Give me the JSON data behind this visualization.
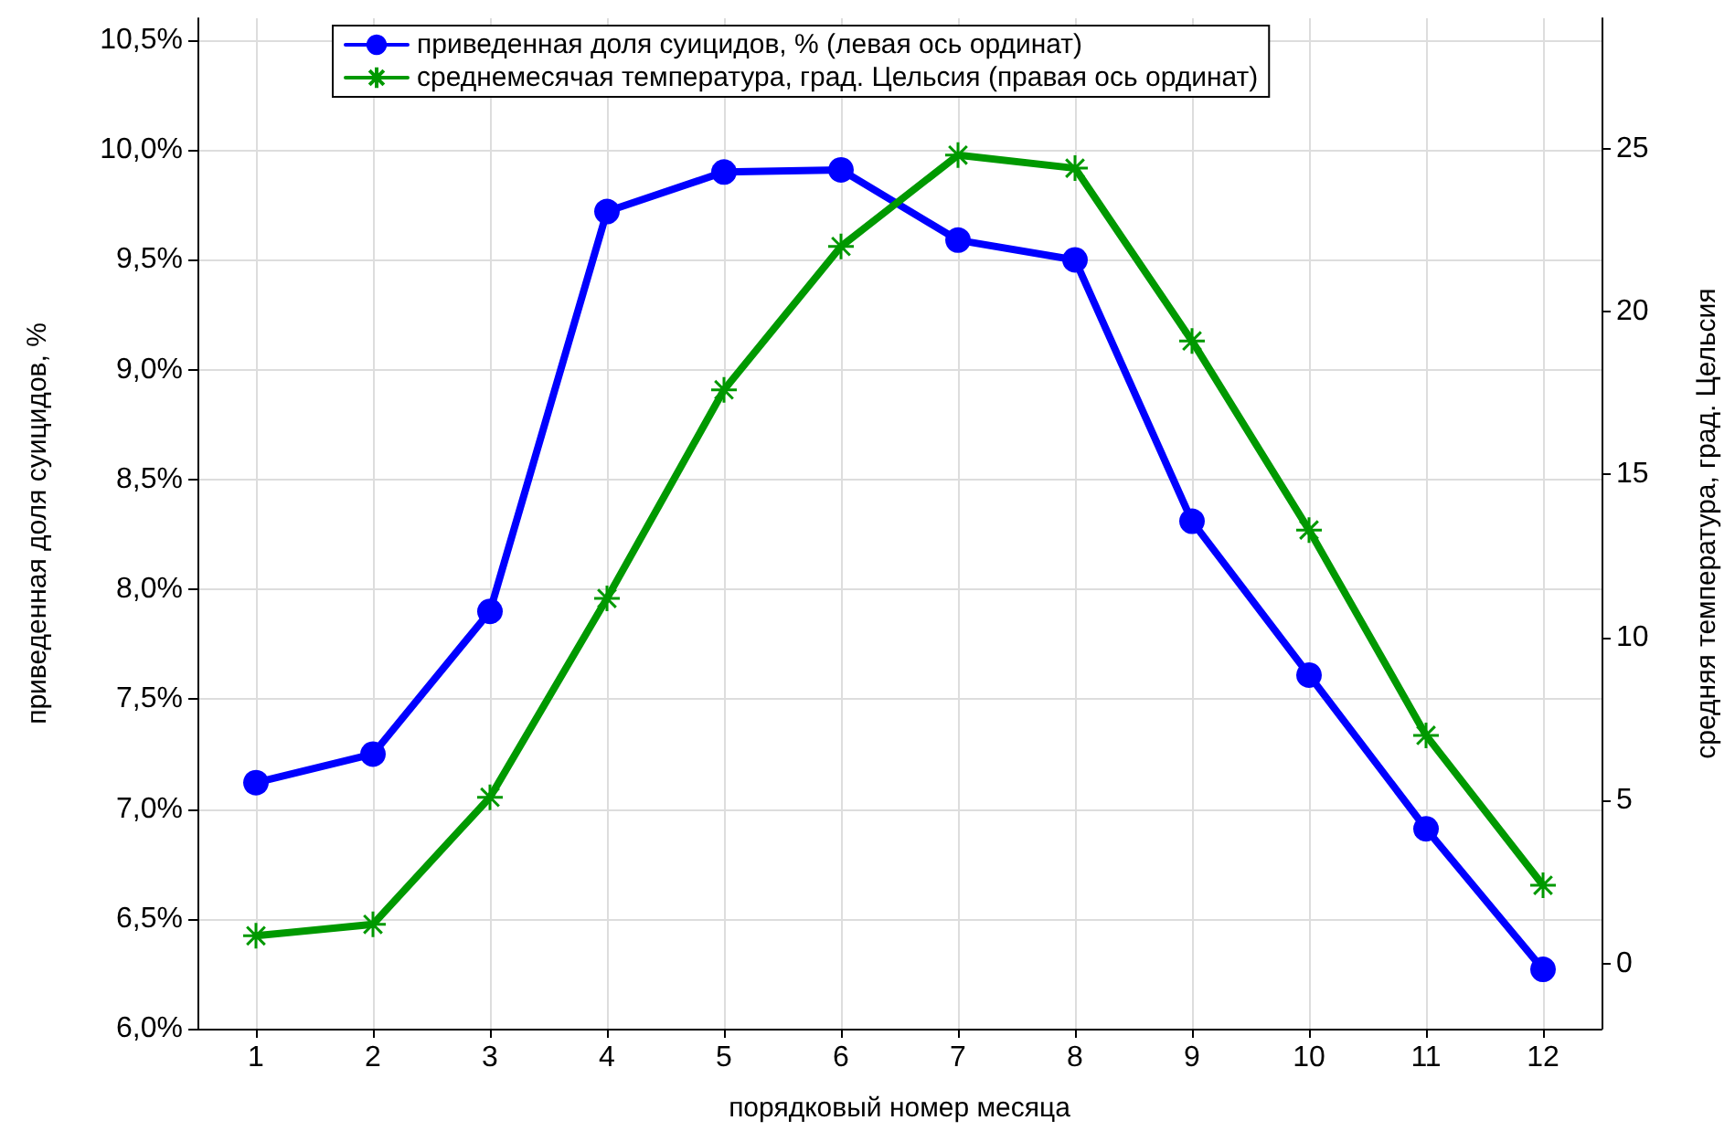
{
  "chart_data": {
    "type": "line",
    "xlabel": "порядковый номер месяца",
    "ylabel": "приведенная доля суицидов, %",
    "y2label": "средняя температура, град. Цельсия",
    "x": [
      1,
      2,
      3,
      4,
      5,
      6,
      7,
      8,
      9,
      10,
      11,
      12
    ],
    "xlim": [
      0.5,
      12.5
    ],
    "xticks": [
      1,
      2,
      3,
      4,
      5,
      6,
      7,
      8,
      9,
      10,
      11,
      12
    ],
    "series": [
      {
        "name": "приведенная доля суицидов, % (левая ось ординат)",
        "color": "#0000ff",
        "marker": "circle",
        "values": [
          7.12,
          7.25,
          7.9,
          9.72,
          9.9,
          9.91,
          9.59,
          9.5,
          8.31,
          7.61,
          6.91,
          6.27
        ]
      },
      {
        "name": "среднемесячая температура, град. Цельсия (правая ось ординат)",
        "color": "#009900",
        "marker": "cross",
        "axis": "y2",
        "values": [
          0.85,
          1.2,
          5.1,
          11.2,
          17.6,
          22.0,
          24.8,
          24.4,
          19.1,
          13.3,
          7.0,
          2.4
        ]
      }
    ],
    "ylim": [
      6.0,
      10.6
    ],
    "yticks": [
      {
        "value": 6.0,
        "label": "6,0%"
      },
      {
        "value": 6.5,
        "label": "6,5%"
      },
      {
        "value": 7.0,
        "label": "7,0%"
      },
      {
        "value": 7.5,
        "label": "7,5%"
      },
      {
        "value": 8.0,
        "label": "8,0%"
      },
      {
        "value": 8.5,
        "label": "8,5%"
      },
      {
        "value": 9.0,
        "label": "9,0%"
      },
      {
        "value": 9.5,
        "label": "9,5%"
      },
      {
        "value": 10.0,
        "label": "10,0%"
      },
      {
        "value": 10.5,
        "label": "10,5%"
      }
    ],
    "y2lim": [
      -2,
      29
    ],
    "y2ticks": [
      0,
      5,
      10,
      15,
      20,
      25
    ],
    "grid": true,
    "legend": "top",
    "line_style": "solid"
  }
}
